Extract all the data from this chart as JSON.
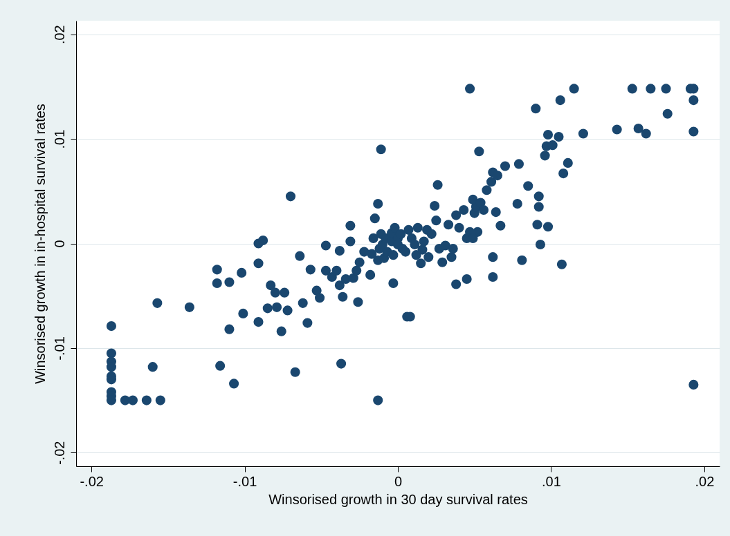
{
  "chart_data": {
    "type": "scatter",
    "xlabel": "Winsorised growth in 30 day survival rates",
    "ylabel": "Winsorised growth in in-hospital survival rates",
    "xlim": [
      -0.021,
      0.021
    ],
    "ylim": [
      -0.0213,
      0.0213
    ],
    "xticks": [
      {
        "value": -0.02,
        "label": "-.02"
      },
      {
        "value": -0.01,
        "label": "-.01"
      },
      0,
      {
        "value": 0.01,
        "label": ".01"
      },
      {
        "value": 0.02,
        "label": ".02"
      }
    ],
    "yticks": [
      {
        "value": -0.02,
        "label": "-.02"
      },
      {
        "value": -0.01,
        "label": "-.01"
      },
      0,
      {
        "value": 0.01,
        "label": ".01"
      },
      {
        "value": 0.02,
        "label": ".02"
      }
    ],
    "grid": "y",
    "marker": "circle",
    "color": "#1a476f",
    "x": [
      -0.0187,
      -0.0187,
      -0.0187,
      -0.0187,
      -0.0187,
      -0.0187,
      -0.0187,
      -0.0187,
      -0.0187,
      -0.0178,
      -0.0173,
      -0.0164,
      -0.0155,
      -0.016,
      -0.0157,
      -0.0136,
      -0.0118,
      -0.0118,
      -0.011,
      -0.011,
      -0.0116,
      -0.0107,
      -0.0102,
      -0.0101,
      -0.0091,
      -0.0085,
      -0.0079,
      -0.0091,
      -0.0088,
      -0.0091,
      -0.0083,
      -0.008,
      -0.0076,
      -0.0074,
      -0.0072,
      -0.007,
      -0.0067,
      -0.0064,
      -0.0062,
      -0.0059,
      -0.0057,
      -0.0053,
      -0.0051,
      -0.0047,
      -0.0047,
      -0.0043,
      -0.004,
      -0.0038,
      -0.0038,
      -0.0036,
      -0.0037,
      -0.0034,
      -0.0031,
      -0.0031,
      -0.0029,
      -0.0027,
      -0.0026,
      -0.0025,
      -0.0022,
      -0.0018,
      -0.0017,
      -0.0016,
      -0.0015,
      -0.0013,
      -0.0013,
      -0.0012,
      -0.0011,
      -0.0011,
      -0.0013,
      -0.001,
      -0.0009,
      -0.0008,
      -0.0007,
      -0.0004,
      -0.0004,
      -0.0003,
      -0.0003,
      -0.0002,
      0,
      0,
      0.0002,
      0.0003,
      0.0005,
      0.0006,
      0.0008,
      0.0007,
      0.0009,
      0.0011,
      0.0012,
      0.0013,
      0.0015,
      0.0016,
      0.0017,
      0.0019,
      0.002,
      0.0022,
      0.0024,
      0.0025,
      0.0026,
      0.0027,
      0.0029,
      0.0031,
      0.0033,
      0.0035,
      0.0036,
      0.0038,
      0.004,
      0.0043,
      0.0045,
      0.0047,
      0.0038,
      0.0045,
      0.005,
      0.0051,
      0.0052,
      0.0053,
      0.0049,
      0.0047,
      0.0049,
      0.0054,
      0.0056,
      0.0058,
      0.0061,
      0.0062,
      0.0064,
      0.0062,
      0.0062,
      0.0065,
      0.0067,
      0.007,
      0.0079,
      0.0078,
      0.0081,
      0.0085,
      0.0092,
      0.0092,
      0.0091,
      0.0093,
      0.0096,
      0.0097,
      0.0098,
      0.0098,
      0.0101,
      0.0105,
      0.0107,
      0.0108,
      0.0111,
      0.0106,
      0.0115,
      0.0121,
      0.009,
      0.0143,
      0.0153,
      0.0157,
      0.0162,
      0.0165,
      0.0175,
      0.0176,
      0.0191,
      0.0193,
      0.0193,
      0.0193,
      0.0193
    ],
    "values": [
      -0.0079,
      -0.0105,
      -0.0113,
      -0.0118,
      -0.0127,
      -0.013,
      -0.0142,
      -0.0146,
      -0.015,
      -0.015,
      -0.015,
      -0.015,
      -0.015,
      -0.0118,
      -0.0057,
      -0.0061,
      -0.0025,
      -0.0038,
      -0.0037,
      -0.0082,
      -0.0117,
      -0.0134,
      -0.0028,
      -0.0067,
      -0.0075,
      -0.0062,
      -0.0061,
      0,
      0.0003,
      -0.0019,
      -0.004,
      -0.0047,
      -0.0084,
      -0.0047,
      -0.0064,
      0.0045,
      -0.0123,
      -0.0012,
      -0.0057,
      -0.0076,
      -0.0025,
      -0.0045,
      -0.0052,
      -0.0002,
      -0.0026,
      -0.0032,
      -0.0026,
      -0.0007,
      -0.004,
      -0.0051,
      -0.0115,
      -0.0034,
      0.0017,
      0.0002,
      -0.0033,
      -0.0026,
      -0.0056,
      -0.0018,
      -0.0008,
      -0.003,
      -0.001,
      0.0005,
      0.0024,
      0.0038,
      -0.0016,
      -0.0005,
      0.0009,
      0.009,
      -0.015,
      -0.0001,
      -0.0014,
      0.0005,
      -0.0008,
      0.0002,
      0.001,
      -0.0038,
      -0.0011,
      0.0015,
      0.0005,
      -0.0001,
      0.0009,
      -0.0005,
      -0.0008,
      -0.007,
      -0.007,
      0.0013,
      0.0005,
      -0.0001,
      -0.0011,
      0.0015,
      -0.0019,
      -0.0006,
      0.0002,
      0.0013,
      -0.0013,
      0.0009,
      0.0036,
      0.0022,
      0.0056,
      -0.0005,
      -0.0018,
      -0.0002,
      0.0018,
      -0.0013,
      -0.0005,
      0.0027,
      0.0015,
      0.0032,
      0.0005,
      0.0011,
      -0.0039,
      -0.0034,
      0.0029,
      0.0035,
      0.0011,
      0.0088,
      0.0042,
      0.0148,
      0.0005,
      0.0039,
      0.0032,
      0.0051,
      0.0059,
      0.0068,
      0.003,
      -0.0013,
      -0.0032,
      0.0065,
      0.0017,
      0.0074,
      0.0076,
      0.0038,
      -0.0016,
      0.0055,
      0.0045,
      0.0035,
      0.0018,
      -0.0001,
      0.0084,
      0.0093,
      0.0104,
      0.0016,
      0.0094,
      0.0102,
      -0.002,
      0.0067,
      0.0077,
      0.0137,
      0.0148,
      0.0105,
      0.0129,
      0.0109,
      0.0148,
      0.011,
      0.0105,
      0.0148,
      0.0148,
      0.0124,
      0.0148,
      0.0148,
      0.0137,
      0.0107,
      -0.0135
    ]
  }
}
